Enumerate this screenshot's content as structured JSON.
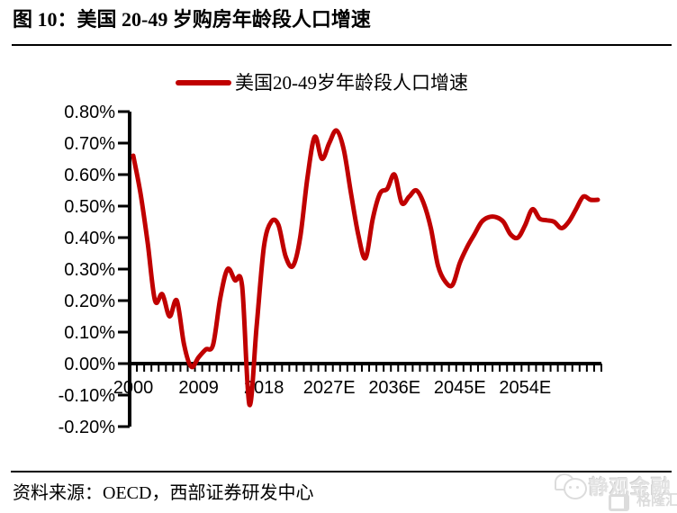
{
  "header": {
    "title": "图 10：美国 20-49 岁购房年龄段人口增速"
  },
  "chart_data": {
    "type": "line",
    "title": "美国 20-49 岁购房年龄段人口增速",
    "legend": "美国20-49岁年龄段人口增速",
    "line_color": "#C00000",
    "unit": "%",
    "ylim": [
      -0.2,
      0.8
    ],
    "grid": false,
    "legend_position": "top",
    "x_tick_labels": [
      "2000",
      "2009",
      "2018",
      "2027E",
      "2036E",
      "2045E",
      "2054E"
    ],
    "x_tick_indices": [
      0,
      9,
      18,
      27,
      36,
      45,
      54
    ],
    "y_tick_labels": [
      "0.80%",
      "0.70%",
      "0.60%",
      "0.50%",
      "0.40%",
      "0.30%",
      "0.20%",
      "0.10%",
      "0.00%",
      "-0.10%",
      "-0.20%"
    ],
    "y_tick_values": [
      0.8,
      0.7,
      0.6,
      0.5,
      0.4,
      0.3,
      0.2,
      0.1,
      0.0,
      -0.1,
      -0.2
    ],
    "x_start_year": 2000,
    "x": [
      2000,
      2001,
      2002,
      2003,
      2004,
      2005,
      2006,
      2007,
      2008,
      2009,
      2010,
      2011,
      2012,
      2013,
      2014,
      2015,
      2016,
      2017,
      2018,
      2019,
      2020,
      2021,
      2022,
      2023,
      2024,
      2025,
      2026,
      2027,
      2028,
      2029,
      2030,
      2031,
      2032,
      2033,
      2034,
      2035,
      2036,
      2037,
      2038,
      2039,
      2040,
      2041,
      2042,
      2043,
      2044,
      2045,
      2046,
      2047,
      2048,
      2049,
      2050,
      2051,
      2052,
      2053,
      2054,
      2055,
      2056,
      2057,
      2058,
      2059,
      2060,
      2061,
      2062,
      2063,
      2064
    ],
    "series": [
      {
        "name": "美国20-49岁年龄段人口增速",
        "values": [
          0.66,
          0.54,
          0.38,
          0.2,
          0.22,
          0.15,
          0.2,
          0.06,
          -0.01,
          0.02,
          0.045,
          0.06,
          0.21,
          0.3,
          0.265,
          0.245,
          -0.13,
          0.12,
          0.37,
          0.45,
          0.44,
          0.34,
          0.31,
          0.4,
          0.59,
          0.72,
          0.65,
          0.7,
          0.74,
          0.68,
          0.54,
          0.41,
          0.335,
          0.46,
          0.54,
          0.555,
          0.6,
          0.51,
          0.53,
          0.55,
          0.51,
          0.43,
          0.31,
          0.26,
          0.25,
          0.32,
          0.37,
          0.41,
          0.45,
          0.465,
          0.465,
          0.45,
          0.41,
          0.4,
          0.44,
          0.49,
          0.46,
          0.455,
          0.45,
          0.43,
          0.45,
          0.49,
          0.53,
          0.52,
          0.52
        ]
      }
    ]
  },
  "footer": {
    "source": "资料来源：OECD，西部证券研发中心"
  },
  "watermark": {
    "brand": "静观金融",
    "logo_letter": "G",
    "sub_brand": "格隆汇"
  }
}
